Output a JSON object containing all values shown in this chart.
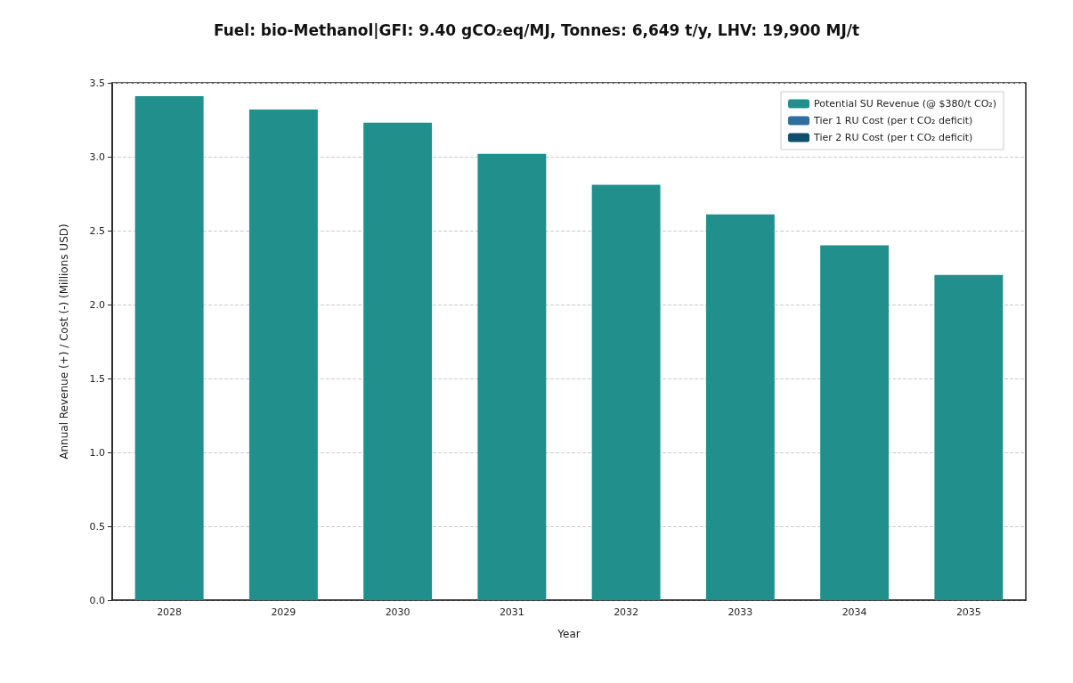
{
  "chart_data": {
    "type": "bar",
    "title": "Fuel: bio-Methanol|GFI: 9.40 gCO₂eq/MJ, Tonnes: 6,649 t/y, LHV: 19,900 MJ/t",
    "xlabel": "Year",
    "ylabel": "Annual Revenue (+) / Cost (-) (Millions USD)",
    "categories": [
      "2028",
      "2029",
      "2030",
      "2031",
      "2032",
      "2033",
      "2034",
      "2035"
    ],
    "series": [
      {
        "name": "Potential SU Revenue (@ $380/t CO₂)",
        "color": "#21908c",
        "values": [
          3.41,
          3.32,
          3.23,
          3.02,
          2.81,
          2.61,
          2.4,
          2.2
        ]
      },
      {
        "name": "Tier 1 RU Cost (per t CO₂ deficit)",
        "color": "#2e6f9e",
        "values": [
          0,
          0,
          0,
          0,
          0,
          0,
          0,
          0
        ]
      },
      {
        "name": "Tier 2 RU Cost (per t CO₂ deficit)",
        "color": "#0e4f6e",
        "values": [
          0,
          0,
          0,
          0,
          0,
          0,
          0,
          0
        ]
      }
    ],
    "stacked": true,
    "ylim": [
      0,
      3.5
    ],
    "yticks": [
      {
        "value": 0,
        "label": "0.0"
      },
      0.5,
      {
        "value": 1,
        "label": "1.0"
      },
      1.5,
      {
        "value": 2,
        "label": "2.0"
      },
      2.5,
      {
        "value": 3,
        "label": "3.0"
      },
      3.5
    ],
    "grid": "y",
    "legend": "top right"
  }
}
